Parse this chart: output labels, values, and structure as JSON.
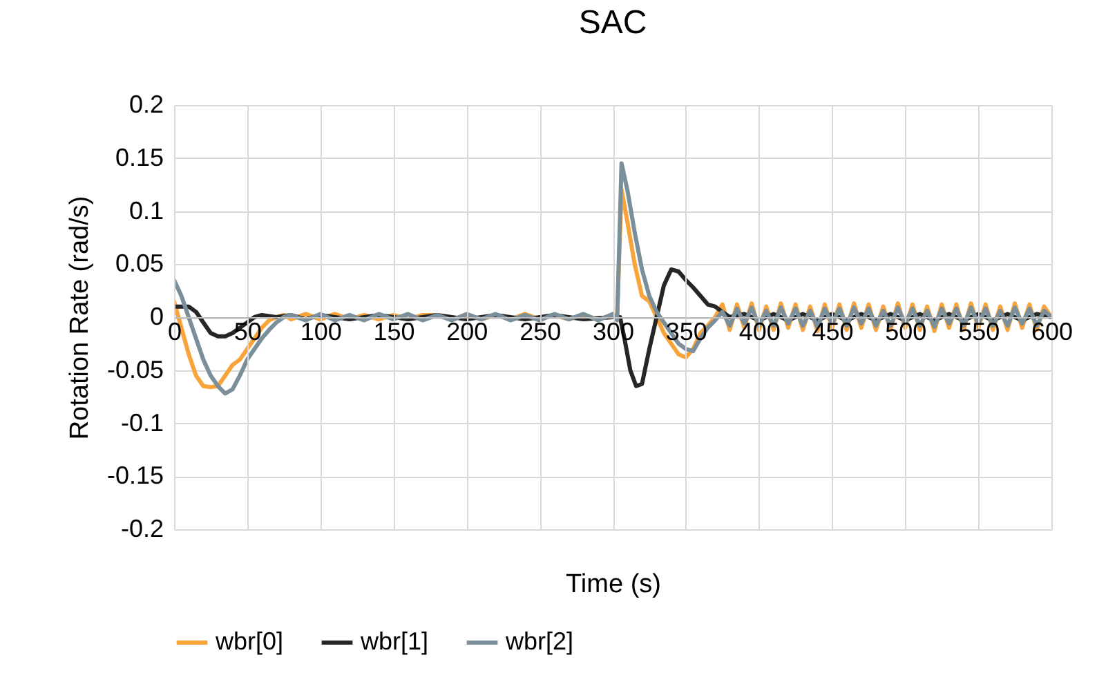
{
  "chart_data": {
    "type": "line",
    "title": "SAC",
    "xlabel": "Time (s)",
    "ylabel": "Rotation Rate (rad/s)",
    "xlim": [
      0,
      600
    ],
    "xticks": [
      0,
      50,
      100,
      150,
      200,
      250,
      300,
      350,
      400,
      450,
      500,
      550,
      600
    ],
    "ylim": [
      -0.2,
      0.2
    ],
    "yticks": [
      -0.2,
      -0.15,
      -0.1,
      -0.05,
      0,
      0.05,
      0.1,
      0.15,
      0.2
    ],
    "grid": true,
    "legend": "bottom",
    "marker": "none",
    "line_style": "solid",
    "series": [
      {
        "name": "wbr[0]",
        "color": "#f8a43a",
        "x": [
          0,
          5,
          10,
          15,
          20,
          25,
          30,
          35,
          40,
          45,
          50,
          55,
          60,
          65,
          70,
          75,
          80,
          90,
          100,
          110,
          120,
          130,
          140,
          150,
          160,
          170,
          180,
          190,
          200,
          210,
          220,
          230,
          240,
          250,
          260,
          270,
          280,
          290,
          300,
          303,
          306,
          310,
          315,
          320,
          325,
          330,
          335,
          340,
          345,
          350,
          355,
          360,
          365,
          370,
          375,
          380,
          385,
          390,
          395,
          400,
          405,
          410,
          415,
          420,
          425,
          430,
          435,
          440,
          445,
          450,
          455,
          460,
          465,
          470,
          475,
          480,
          485,
          490,
          495,
          500,
          505,
          510,
          515,
          520,
          525,
          530,
          535,
          540,
          545,
          550,
          555,
          560,
          565,
          570,
          575,
          580,
          585,
          590,
          595,
          600
        ],
        "values": [
          0.015,
          -0.01,
          -0.035,
          -0.055,
          -0.065,
          -0.066,
          -0.065,
          -0.055,
          -0.045,
          -0.04,
          -0.03,
          -0.02,
          -0.01,
          -0.003,
          0,
          0.002,
          -0.002,
          0.003,
          -0.002,
          0.003,
          -0.002,
          0.002,
          -0.002,
          0.002,
          -0.002,
          0.002,
          0.002,
          -0.002,
          0.002,
          -0.002,
          0.002,
          -0.002,
          0.003,
          -0.002,
          0.002,
          -0.002,
          0.002,
          -0.002,
          0.002,
          0,
          0.12,
          0.09,
          0.05,
          0.02,
          0.015,
          0,
          -0.015,
          -0.025,
          -0.035,
          -0.038,
          -0.03,
          -0.015,
          -0.008,
          0,
          0.012,
          -0.012,
          0.012,
          -0.01,
          0.013,
          -0.012,
          0.01,
          -0.012,
          0.013,
          -0.01,
          0.012,
          -0.012,
          0.01,
          -0.013,
          0.012,
          -0.01,
          0.012,
          -0.012,
          0.013,
          -0.01,
          0.012,
          -0.012,
          0.01,
          -0.012,
          0.013,
          -0.01,
          0.012,
          -0.012,
          0.01,
          -0.013,
          0.012,
          -0.01,
          0.012,
          -0.012,
          0.013,
          -0.01,
          0.012,
          -0.012,
          0.01,
          -0.012,
          0.013,
          -0.01,
          0.012,
          -0.012,
          0.01,
          0
        ]
      },
      {
        "name": "wbr[1]",
        "color": "#262626",
        "x": [
          0,
          5,
          10,
          15,
          20,
          25,
          30,
          35,
          40,
          45,
          50,
          55,
          60,
          65,
          70,
          80,
          90,
          100,
          120,
          140,
          160,
          180,
          200,
          220,
          240,
          260,
          280,
          300,
          305,
          308,
          312,
          316,
          320,
          325,
          330,
          335,
          340,
          345,
          350,
          355,
          360,
          365,
          370,
          375,
          380,
          390,
          400,
          410,
          420,
          430,
          440,
          450,
          460,
          470,
          480,
          490,
          500,
          510,
          520,
          530,
          540,
          550,
          560,
          570,
          580,
          590,
          600
        ],
        "values": [
          0.01,
          0.01,
          0.01,
          0.005,
          -0.005,
          -0.015,
          -0.018,
          -0.018,
          -0.015,
          -0.01,
          -0.005,
          0,
          0.002,
          0.001,
          0,
          0.002,
          -0.002,
          0.002,
          -0.002,
          0.002,
          -0.002,
          0.002,
          -0.002,
          0.002,
          -0.002,
          0.002,
          -0.002,
          0,
          0,
          -0.02,
          -0.05,
          -0.065,
          -0.063,
          -0.03,
          0,
          0.03,
          0.045,
          0.043,
          0.035,
          0.028,
          0.02,
          0.012,
          0.01,
          0.005,
          0,
          0.003,
          -0.003,
          0.003,
          -0.003,
          0.003,
          -0.003,
          0.003,
          -0.003,
          0.003,
          -0.003,
          0.003,
          -0.003,
          0.003,
          -0.003,
          0.003,
          -0.003,
          0.003,
          -0.003,
          0.003,
          -0.003,
          0.003,
          0
        ]
      },
      {
        "name": "wbr[2]",
        "color": "#7a8f99",
        "x": [
          0,
          5,
          10,
          15,
          20,
          25,
          30,
          35,
          40,
          45,
          50,
          55,
          60,
          65,
          70,
          75,
          80,
          90,
          100,
          110,
          120,
          130,
          140,
          150,
          160,
          170,
          180,
          190,
          200,
          210,
          220,
          230,
          240,
          250,
          260,
          270,
          280,
          290,
          300,
          303,
          306,
          310,
          315,
          320,
          325,
          330,
          335,
          340,
          345,
          350,
          355,
          360,
          365,
          370,
          375,
          380,
          385,
          390,
          395,
          400,
          405,
          410,
          415,
          420,
          425,
          430,
          435,
          440,
          445,
          450,
          455,
          460,
          465,
          470,
          475,
          480,
          485,
          490,
          495,
          500,
          505,
          510,
          515,
          520,
          525,
          530,
          535,
          540,
          545,
          550,
          555,
          560,
          565,
          570,
          575,
          580,
          585,
          590,
          595,
          600
        ],
        "values": [
          0.035,
          0.02,
          0,
          -0.02,
          -0.04,
          -0.055,
          -0.065,
          -0.072,
          -0.068,
          -0.055,
          -0.04,
          -0.03,
          -0.02,
          -0.012,
          -0.005,
          0,
          0.002,
          -0.003,
          0.003,
          -0.003,
          0.002,
          -0.003,
          0.003,
          -0.002,
          0.003,
          -0.003,
          0.002,
          -0.003,
          0.003,
          -0.002,
          0.003,
          -0.003,
          0.002,
          -0.003,
          0.003,
          -0.002,
          0.003,
          -0.003,
          0.003,
          -0.003,
          0.145,
          0.12,
          0.08,
          0.045,
          0.02,
          0.005,
          -0.005,
          -0.015,
          -0.025,
          -0.03,
          -0.032,
          -0.02,
          -0.01,
          -0.003,
          0.005,
          -0.008,
          0.008,
          -0.006,
          0.009,
          -0.008,
          0.006,
          -0.008,
          0.009,
          -0.006,
          0.008,
          -0.008,
          0.006,
          -0.009,
          0.008,
          -0.006,
          0.008,
          -0.008,
          0.009,
          -0.006,
          0.008,
          -0.008,
          0.006,
          -0.008,
          0.009,
          -0.006,
          0.008,
          -0.008,
          0.006,
          -0.009,
          0.008,
          -0.006,
          0.008,
          -0.008,
          0.009,
          -0.006,
          0.008,
          -0.008,
          0.006,
          -0.008,
          0.009,
          -0.006,
          0.008,
          -0.008,
          0.006,
          0
        ]
      }
    ]
  }
}
